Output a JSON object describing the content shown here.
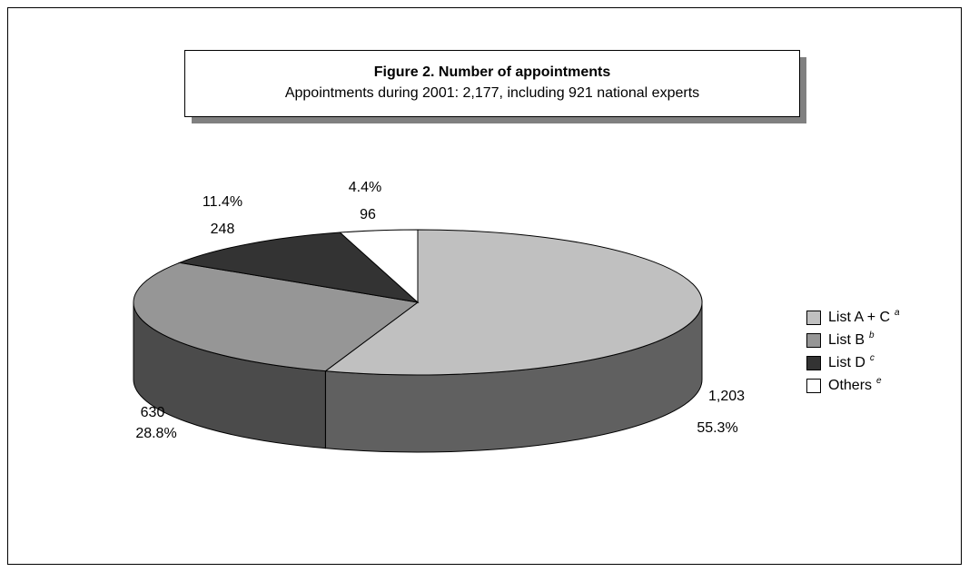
{
  "chart_data": {
    "type": "pie3d",
    "title": "Figure 2. Number of appointments",
    "subtitle": "Appointments during 2001: 2,177, including 921 national experts",
    "series": [
      {
        "name": "List A + C",
        "footnote": "a",
        "color": "#c0c0c0"
      },
      {
        "name": "List B",
        "footnote": "b",
        "color": "#969696"
      },
      {
        "name": "List D",
        "footnote": "c",
        "color": "#333333"
      },
      {
        "name": "Others",
        "footnote": "e",
        "color": "#ffffff"
      }
    ],
    "values": [
      1203,
      630,
      248,
      96
    ],
    "value_labels": [
      "1,203",
      "630",
      "248",
      "96"
    ],
    "percentages": [
      55.3,
      28.8,
      11.4,
      4.4
    ],
    "percentage_labels": [
      "55.3%",
      "28.8%",
      "11.4%",
      "4.4%"
    ]
  }
}
